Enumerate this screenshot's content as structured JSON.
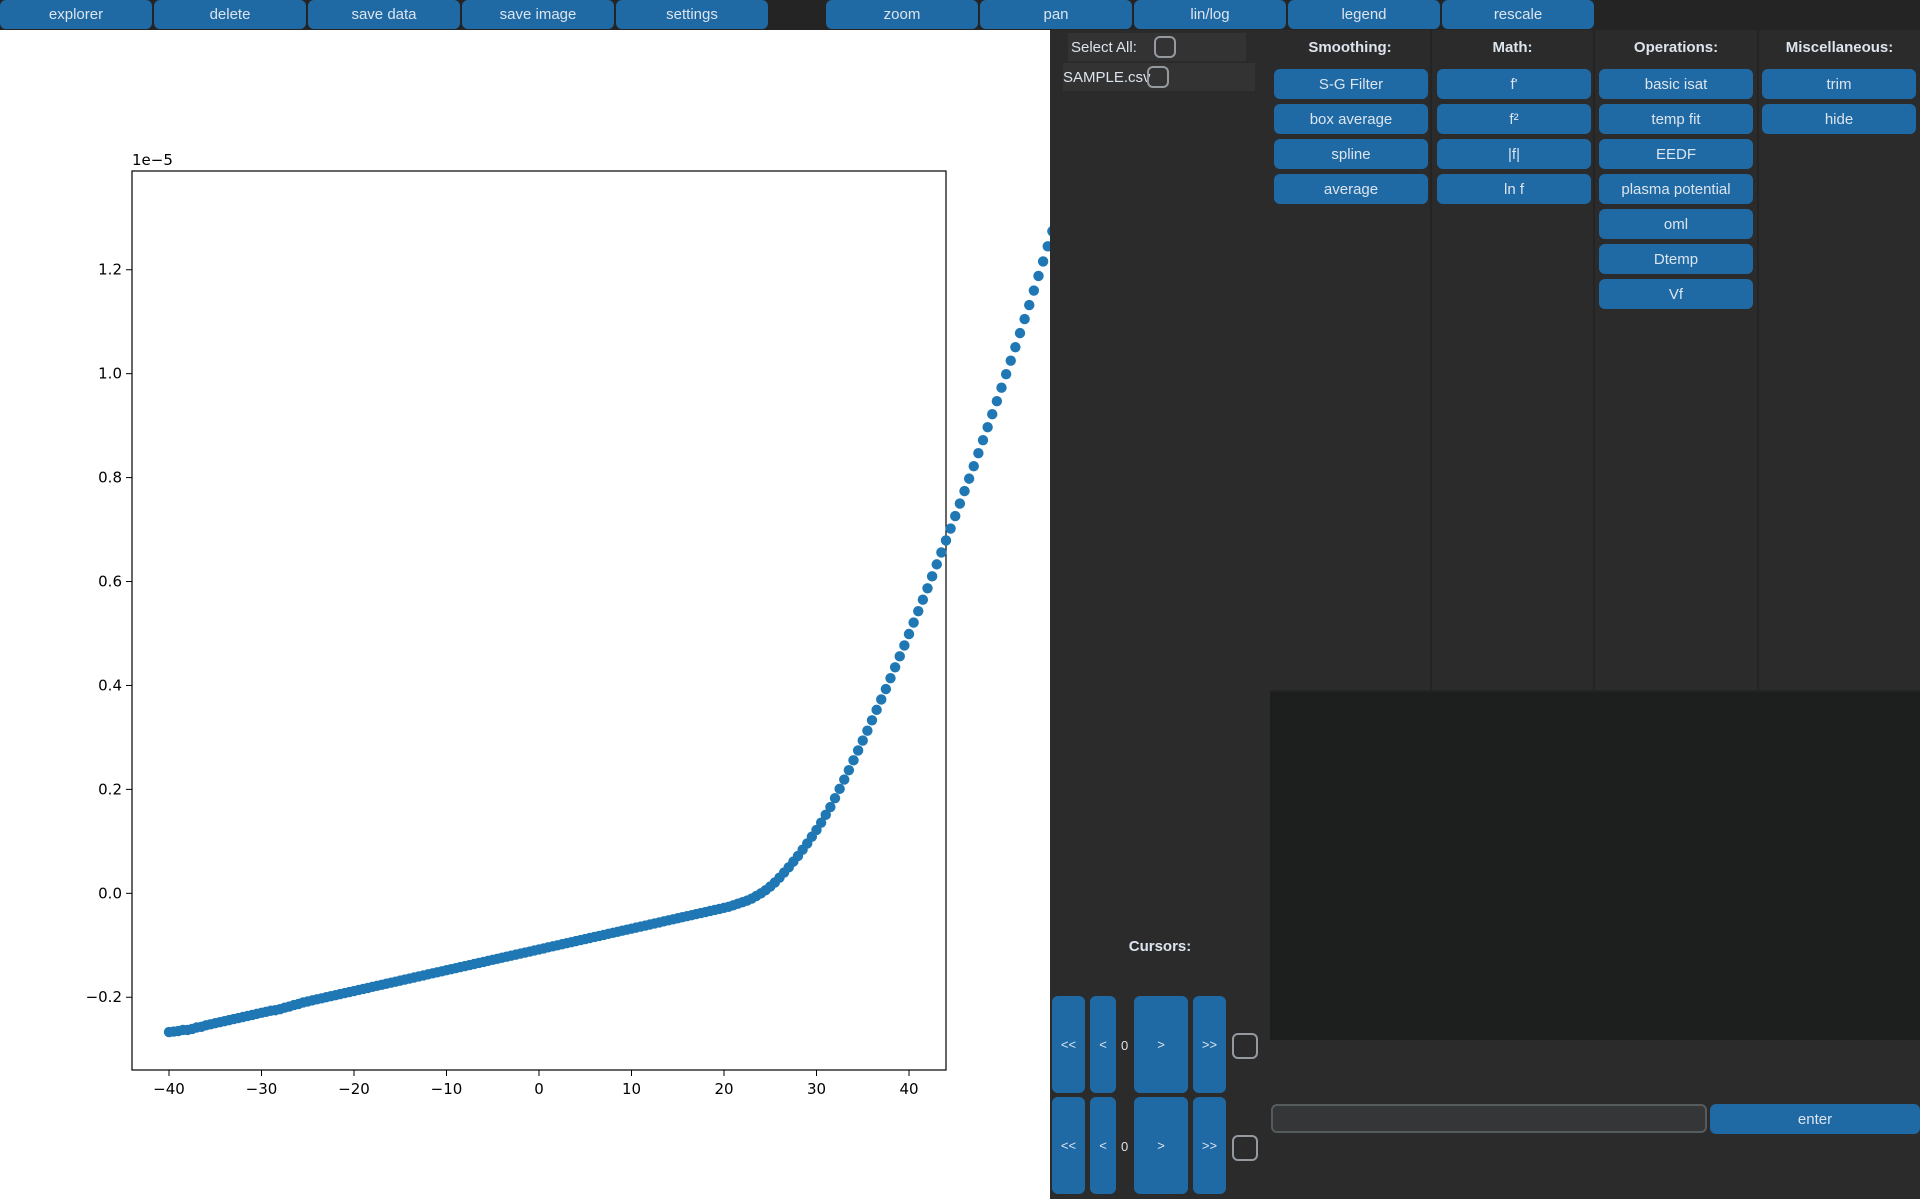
{
  "toolbar_left": [
    "explorer",
    "delete",
    "save data",
    "save image",
    "settings"
  ],
  "toolbar_right": [
    "zoom",
    "pan",
    "lin/log",
    "legend",
    "rescale"
  ],
  "file_list": {
    "select_all_label": "Select All:",
    "files": [
      "SAMPLE.csv"
    ]
  },
  "columns": [
    {
      "header": "Smoothing:",
      "buttons": [
        "S-G Filter",
        "box average",
        "spline",
        "average"
      ]
    },
    {
      "header": "Math:",
      "buttons": [
        "f'",
        "f²",
        "|f|",
        "ln f"
      ]
    },
    {
      "header": "Operations:",
      "buttons": [
        "basic isat",
        "temp fit",
        "EEDF",
        "plasma potential",
        "oml",
        "Dtemp",
        "Vf"
      ]
    },
    {
      "header": "Miscellaneous:",
      "buttons": [
        "trim",
        "hide"
      ]
    }
  ],
  "cursors": {
    "title": "Cursors:",
    "rows": [
      {
        "far_left": "<<",
        "left": "<",
        "value": "0",
        "right": ">",
        "far_right": ">>"
      },
      {
        "far_left": "<<",
        "left": "<",
        "value": "0",
        "right": ">",
        "far_right": ">>"
      }
    ]
  },
  "command": {
    "value": "",
    "enter_label": "enter"
  },
  "colors": {
    "accent": "#1f6aa5",
    "marker": "#1f77b4",
    "bg": "#242424",
    "panel": "#2b2b2b"
  },
  "chart_data": {
    "type": "scatter",
    "title": "",
    "xlabel": "",
    "ylabel": "",
    "offset_text": "1e−5",
    "xlim": [
      -44,
      44
    ],
    "ylim": [
      -0.34,
      1.39
    ],
    "xticks": [
      -40,
      -30,
      -20,
      -10,
      0,
      10,
      20,
      30,
      40
    ],
    "xtick_labels": [
      "−40",
      "−30",
      "−20",
      "−10",
      "0",
      "10",
      "20",
      "30",
      "40"
    ],
    "yticks": [
      -0.2,
      0.0,
      0.2,
      0.4,
      0.6,
      0.8,
      1.0,
      1.2
    ],
    "ytick_labels": [
      "−0.2",
      "0.0",
      "0.2",
      "0.4",
      "0.6",
      "0.8",
      "1.0",
      "1.2"
    ],
    "x_start": -40,
    "x_step": 0.5,
    "y": [
      -0.267,
      -0.266,
      -0.265,
      -0.263,
      -0.263,
      -0.261,
      -0.258,
      -0.257,
      -0.254,
      -0.252,
      -0.25,
      -0.248,
      -0.246,
      -0.244,
      -0.242,
      -0.24,
      -0.238,
      -0.236,
      -0.234,
      -0.232,
      -0.23,
      -0.228,
      -0.226,
      -0.225,
      -0.223,
      -0.22,
      -0.218,
      -0.215,
      -0.213,
      -0.21,
      -0.208,
      -0.206,
      -0.204,
      -0.202,
      -0.2,
      -0.198,
      -0.196,
      -0.194,
      -0.192,
      -0.19,
      -0.188,
      -0.186,
      -0.184,
      -0.182,
      -0.18,
      -0.178,
      -0.176,
      -0.174,
      -0.172,
      -0.17,
      -0.168,
      -0.166,
      -0.164,
      -0.162,
      -0.16,
      -0.158,
      -0.156,
      -0.154,
      -0.152,
      -0.15,
      -0.148,
      -0.146,
      -0.144,
      -0.142,
      -0.14,
      -0.138,
      -0.136,
      -0.134,
      -0.132,
      -0.13,
      -0.128,
      -0.126,
      -0.124,
      -0.122,
      -0.12,
      -0.118,
      -0.116,
      -0.114,
      -0.112,
      -0.11,
      -0.108,
      -0.106,
      -0.104,
      -0.102,
      -0.1,
      -0.098,
      -0.096,
      -0.094,
      -0.092,
      -0.09,
      -0.088,
      -0.086,
      -0.084,
      -0.082,
      -0.08,
      -0.078,
      -0.076,
      -0.074,
      -0.072,
      -0.07,
      -0.068,
      -0.066,
      -0.064,
      -0.062,
      -0.06,
      -0.058,
      -0.056,
      -0.054,
      -0.052,
      -0.05,
      -0.048,
      -0.046,
      -0.044,
      -0.042,
      -0.04,
      -0.038,
      -0.036,
      -0.034,
      -0.032,
      -0.03,
      -0.028,
      -0.026,
      -0.023,
      -0.02,
      -0.017,
      -0.014,
      -0.01,
      -0.005,
      0.0,
      0.006,
      0.013,
      0.021,
      0.03,
      0.04,
      0.05,
      0.061,
      0.072,
      0.084,
      0.096,
      0.109,
      0.122,
      0.136,
      0.151,
      0.166,
      0.183,
      0.201,
      0.219,
      0.237,
      0.256,
      0.275,
      0.294,
      0.313,
      0.333,
      0.353,
      0.373,
      0.393,
      0.414,
      0.435,
      0.456,
      0.477,
      0.499,
      0.521,
      0.543,
      0.565,
      0.587,
      0.61,
      0.633,
      0.656,
      0.679,
      0.702,
      0.726,
      0.75,
      0.774,
      0.798,
      0.822,
      0.847,
      0.872,
      0.897,
      0.922,
      0.947,
      0.973,
      0.999,
      1.025,
      1.051,
      1.078,
      1.105,
      1.132,
      1.16,
      1.188,
      1.216,
      1.245,
      1.274,
      1.304,
      1.318
    ]
  }
}
